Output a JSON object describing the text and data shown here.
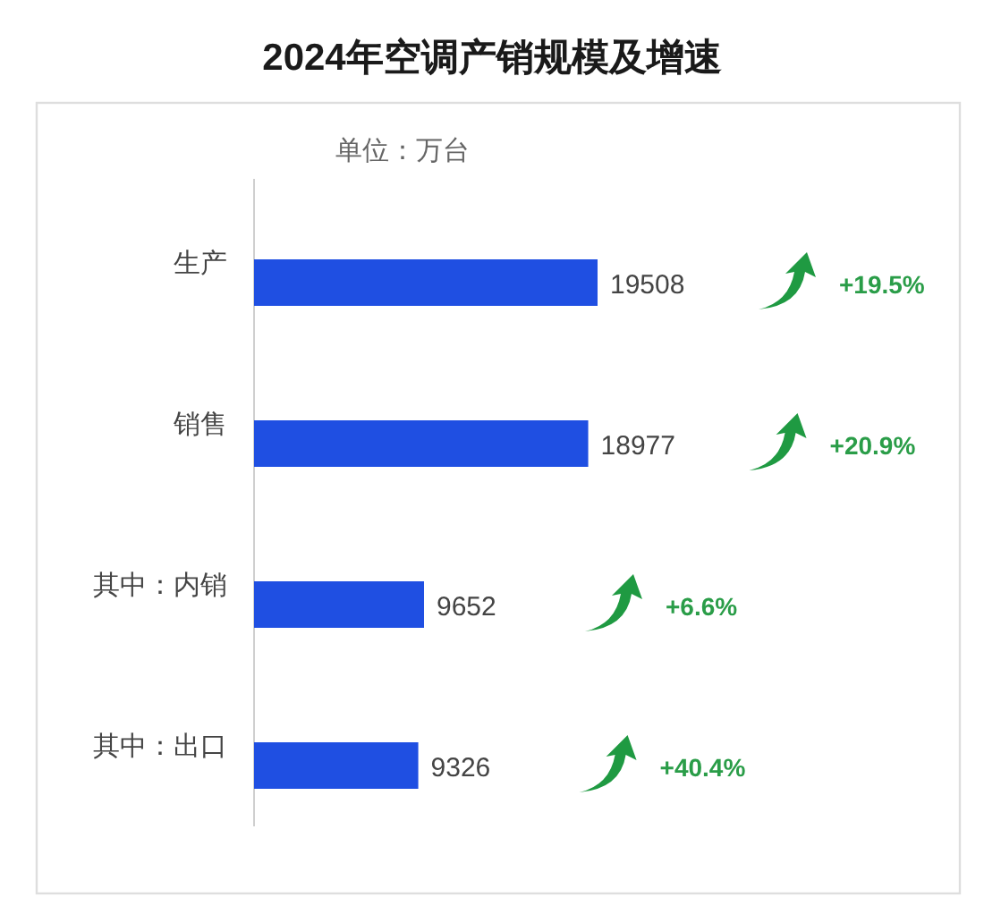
{
  "chart_data": {
    "type": "bar",
    "orientation": "horizontal",
    "title": "2024年空调产销规模及增速",
    "subtitle": "单位：万台",
    "categories": [
      "生产",
      "销售",
      "其中：内销",
      "其中：出口"
    ],
    "values": [
      19508,
      18977,
      9652,
      9326
    ],
    "color": "#1f4fe2",
    "data_labels": true,
    "annotations": [
      "+19.5%",
      "+20.9%",
      "+6.6%",
      "+40.4%"
    ]
  }
}
